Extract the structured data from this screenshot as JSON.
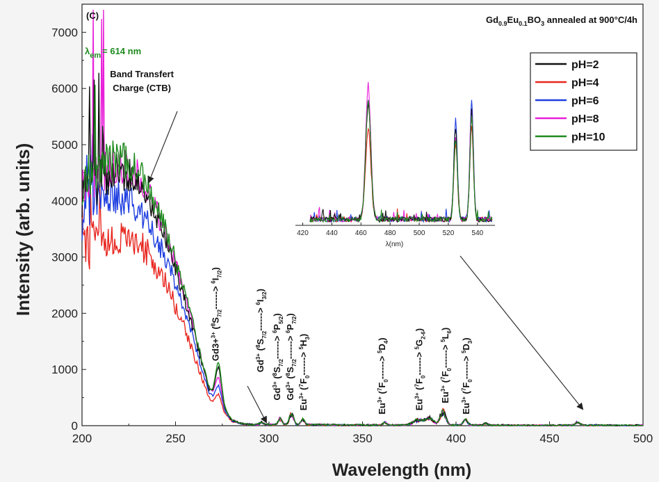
{
  "chart_data": {
    "type": "line",
    "panel_label": "(C)",
    "title_parts": {
      "base": "Gd",
      "s1": "0.9",
      "mid": "Eu",
      "s2": "0.1",
      "tail": "BO",
      "s3": "3",
      "rest": " annealed at 900°C/4h"
    },
    "lambda_em": {
      "sym": "λ",
      "sub": "em",
      "text": "= 614 nm",
      "color": "#1e8a1e"
    },
    "xlabel": "Wavelength (nm)",
    "ylabel": "Intensity  (arb. units)",
    "xlim": [
      200,
      500
    ],
    "ylim": [
      0,
      7500
    ],
    "xticks": [
      200,
      250,
      300,
      350,
      400,
      450,
      500
    ],
    "yticks": [
      0,
      1000,
      2000,
      3000,
      4000,
      5000,
      6000,
      7000
    ],
    "legend_position": "top-right",
    "series": [
      {
        "name": "pH=2",
        "color": "#111111",
        "scale": 1.0,
        "peak": 1000
      },
      {
        "name": "pH=4",
        "color": "#e8261f",
        "scale": 0.76,
        "peak": 640
      },
      {
        "name": "pH=6",
        "color": "#1f3fe0",
        "scale": 0.9,
        "peak": 720
      },
      {
        "name": "pH=8",
        "color": "#e81fd8",
        "scale": 1.03,
        "peak": 800
      },
      {
        "name": "pH=10",
        "color": "#1e8a1e",
        "scale": 1.05,
        "peak": 1060
      }
    ],
    "base_curve": {
      "x": [
        200,
        205,
        210,
        215,
        220,
        225,
        230,
        235,
        240,
        245,
        250,
        255,
        260,
        265,
        268,
        270,
        273,
        276,
        280,
        285,
        290,
        300,
        310,
        350,
        380,
        390,
        400,
        420,
        500
      ],
      "y": [
        4200,
        4300,
        4400,
        4450,
        4500,
        4450,
        4300,
        4050,
        3700,
        3300,
        2800,
        2250,
        1650,
        1000,
        650,
        550,
        520,
        300,
        100,
        40,
        20,
        20,
        20,
        10,
        10,
        10,
        10,
        5,
        5
      ]
    },
    "features": [
      {
        "x": 273,
        "w": 1.6,
        "h": 550
      },
      {
        "x": 296,
        "w": 1.0,
        "h": 40
      },
      {
        "x": 306,
        "w": 1.0,
        "h": 110
      },
      {
        "x": 312,
        "w": 1.1,
        "h": 200
      },
      {
        "x": 318,
        "w": 1.0,
        "h": 90
      },
      {
        "x": 362,
        "w": 1.0,
        "h": 50
      },
      {
        "x": 380,
        "w": 3.0,
        "h": 90
      },
      {
        "x": 386,
        "w": 2.0,
        "h": 120
      },
      {
        "x": 393,
        "w": 1.5,
        "h": 250
      },
      {
        "x": 405,
        "w": 1.2,
        "h": 100
      },
      {
        "x": 416,
        "w": 1.0,
        "h": 40
      },
      {
        "x": 465,
        "w": 1.2,
        "h": 60
      }
    ],
    "annotations": [
      {
        "id": "ctb-line1",
        "text": "Band Transfert",
        "x": 232,
        "y": 6200
      },
      {
        "id": "ctb-line2",
        "text": "Charge (CTB)",
        "x": 232,
        "y": 5950
      },
      {
        "id": "gd-6i72",
        "ion": "Gd3+",
        "t1": "(8S7/2------> 6I7/2)",
        "x": 273,
        "y": 1150,
        "ion_sup": "3+",
        "pre": "(",
        "sup1": "8",
        "mid1": "S",
        "sub1": "7/2",
        "arrow": "------> ",
        "sup2": "6",
        "mid2": "I",
        "sub2": "7/2",
        "post": ")"
      },
      {
        "id": "gd-6i32",
        "x": 297,
        "y": 950,
        "ion_sup": "3+",
        "pre": "(",
        "sup1": "8",
        "mid1": "S",
        "sub1": "7/2",
        "arrow": "------> ",
        "sup2": "6",
        "mid2": "I",
        "sub2": "3/2",
        "post": ")"
      },
      {
        "id": "gd-6p52",
        "x": 306,
        "y": 450,
        "ion_sup": "3+",
        "pre": "(",
        "sup1": "8",
        "mid1": "S",
        "sub1": "7/2",
        "arrow": "------> ",
        "sup2": "6",
        "mid2": "P",
        "sub2": "5/2",
        "post": ")"
      },
      {
        "id": "gd-6p72",
        "x": 313,
        "y": 450,
        "ion_sup": "3+",
        "pre": "(",
        "sup1": "8",
        "mid1": "S",
        "sub1": "7/2",
        "arrow": "------> ",
        "sup2": "6",
        "mid2": "P",
        "sub2": "7/2",
        "post": ")"
      },
      {
        "id": "eu-5h3",
        "x": 320,
        "y": 270,
        "ion": "Eu",
        "ion_sup": "3+",
        "pre": "(",
        "sup1": "7",
        "mid1": "F",
        "sub1": "0",
        "arrow": "------> ",
        "sup2": "5",
        "mid2": "H",
        "sub2": "3",
        "post": ")"
      },
      {
        "id": "eu-5d4",
        "x": 362,
        "y": 200,
        "ion": "Eu",
        "ion_sup": "3+",
        "pre": "(",
        "sup1": "7",
        "mid1": "F",
        "sub1": "0",
        "arrow": "------> ",
        "sup2": "5",
        "mid2": "D",
        "sub2": "4",
        "post": ")"
      },
      {
        "id": "eu-5g",
        "x": 382,
        "y": 270,
        "ion": "Eu",
        "ion_sup": "3+",
        "pre": "(",
        "sup1": "7",
        "mid1": "F",
        "sub1": "0",
        "arrow": "------> ",
        "sup2": "5",
        "mid2": "G",
        "sub2": "2-6",
        "post": ")"
      },
      {
        "id": "eu-5l6",
        "x": 396,
        "y": 400,
        "ion": "Eu",
        "ion_sup": "3+",
        "pre": "(",
        "sup1": "7",
        "mid1": "F",
        "sub1": "0",
        "arrow": "------> ",
        "sup2": "5",
        "mid2": "L",
        "sub2": "6",
        "post": ")"
      },
      {
        "id": "eu-5d3",
        "x": 407,
        "y": 200,
        "ion": "Eu",
        "ion_sup": "3+",
        "pre": "(",
        "sup1": "7",
        "mid1": "F",
        "sub1": "0",
        "arrow": "------> ",
        "sup2": "5",
        "mid2": "D",
        "sub2": "3",
        "post": ")"
      }
    ],
    "inset": {
      "xlabel": "λ(nm)",
      "xlim": [
        415,
        552
      ],
      "xticks": [
        420,
        440,
        460,
        480,
        500,
        520,
        540
      ],
      "ylim": [
        0,
        6200
      ],
      "peaks": [
        {
          "x": 465,
          "w": 1.8,
          "h": [
            4900,
            3900,
            5100,
            5700,
            5100
          ]
        },
        {
          "x": 525,
          "w": 1.2,
          "h": [
            3900,
            3300,
            4300,
            3600,
            3500
          ]
        },
        {
          "x": 536,
          "w": 1.2,
          "h": [
            4300,
            4000,
            5200,
            4800,
            4500
          ]
        }
      ]
    }
  }
}
